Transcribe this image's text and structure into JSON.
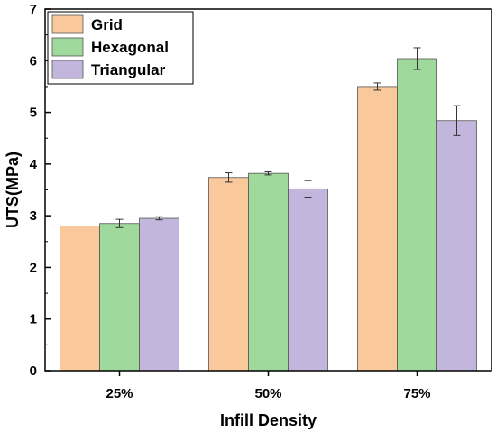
{
  "chart_data": {
    "type": "bar",
    "categories": [
      "25%",
      "50%",
      "75%"
    ],
    "series": [
      {
        "name": "Grid",
        "values": [
          2.8,
          3.74,
          5.5
        ],
        "errors": [
          0.0,
          0.09,
          0.07
        ],
        "color": "#F9C89B"
      },
      {
        "name": "Hexagonal",
        "values": [
          2.85,
          3.82,
          6.04
        ],
        "errors": [
          0.08,
          0.03,
          0.21
        ],
        "color": "#9FD99B"
      },
      {
        "name": "Triangular",
        "values": [
          2.95,
          3.52,
          4.84
        ],
        "errors": [
          0.03,
          0.16,
          0.29
        ],
        "color": "#C3B6DC"
      }
    ],
    "xlabel": "Infill Density",
    "ylabel": "UTS(MPa)",
    "ylim": [
      0,
      7
    ],
    "yticks": [
      "0",
      "1",
      "2",
      "3",
      "4",
      "5",
      "6",
      "7"
    ],
    "legend_position": "top-left",
    "grid": false
  }
}
